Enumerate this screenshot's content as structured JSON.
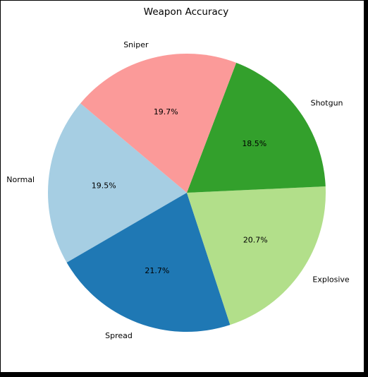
{
  "chart_data": {
    "type": "pie",
    "title": "Weapon Accuracy",
    "slices": [
      {
        "label": "Normal",
        "value": 19.5,
        "pct_label": "19.5%",
        "color": "#a6cee3"
      },
      {
        "label": "Spread",
        "value": 21.7,
        "pct_label": "21.7%",
        "color": "#1f78b4"
      },
      {
        "label": "Explosive",
        "value": 20.7,
        "pct_label": "20.7%",
        "color": "#b2df8a"
      },
      {
        "label": "Shotgun",
        "value": 18.5,
        "pct_label": "18.5%",
        "color": "#33a02c"
      },
      {
        "label": "Sniper",
        "value": 19.7,
        "pct_label": "19.7%",
        "color": "#fb9a99"
      }
    ],
    "start_angle_deg": 140,
    "direction": "counterclockwise",
    "legend": "none"
  }
}
